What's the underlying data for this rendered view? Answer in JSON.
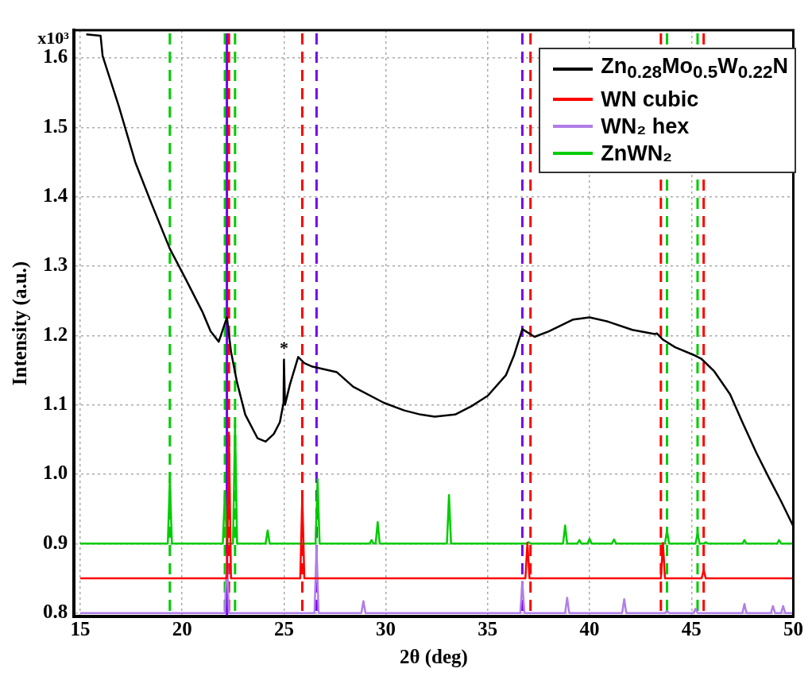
{
  "chart_data": {
    "type": "line",
    "xlabel": "2θ (deg)",
    "ylabel": "Intensity (a.u.)",
    "xlim": [
      14.7,
      50
    ],
    "ylim": [
      0.795,
      1.64
    ],
    "xticks": [
      15,
      20,
      25,
      30,
      35,
      40,
      45,
      50
    ],
    "yticks": [
      0.8,
      0.9,
      {
        "value": 1.0,
        "label": "1.0"
      },
      1.1,
      1.2,
      1.3,
      1.4,
      1.5,
      1.6
    ],
    "grid": true,
    "legend": "top right",
    "marker": "none",
    "line_style": "solid",
    "series": [
      {
        "name": "Zn$_{0.28}$Mo$_{0.5}$W$_{0.22}$N",
        "color": "#000000",
        "x": [
          15.3,
          16,
          16.1,
          16.9,
          17.7,
          18.5,
          19.4,
          20.2,
          21,
          21.4,
          21.8,
          22.2,
          22.4,
          22.7,
          23.1,
          23.7,
          24.1,
          24.5,
          24.8,
          24.98,
          25.0,
          25.05,
          25.3,
          25.7,
          26.0,
          26.4,
          27.6,
          28.4,
          29.9,
          30.9,
          31.7,
          32.4,
          33.4,
          34.2,
          35.0,
          35.9,
          36.3,
          36.7,
          37.3,
          38.0,
          39.2,
          40.0,
          40.9,
          42.1,
          43.2,
          43.3,
          43.6,
          44.2,
          45.1,
          45.5,
          46.1,
          46.9,
          47.5,
          48.2,
          48.8,
          49.4,
          50
        ],
        "values": [
          1.634,
          1.632,
          1.603,
          1.53,
          1.45,
          1.39,
          1.325,
          1.28,
          1.234,
          1.206,
          1.191,
          1.226,
          1.177,
          1.132,
          1.086,
          1.052,
          1.047,
          1.058,
          1.075,
          1.103,
          1.165,
          1.1,
          1.13,
          1.169,
          1.16,
          1.155,
          1.147,
          1.126,
          1.103,
          1.092,
          1.086,
          1.083,
          1.086,
          1.098,
          1.113,
          1.143,
          1.172,
          1.209,
          1.198,
          1.206,
          1.223,
          1.226,
          1.22,
          1.208,
          1.202,
          1.203,
          1.194,
          1.183,
          1.172,
          1.166,
          1.149,
          1.115,
          1.075,
          1.03,
          0.995,
          0.961,
          0.925
        ]
      },
      {
        "name": "WN cubic",
        "color": "#ff0000",
        "x": [
          15,
          22.2,
          22.3,
          22.4,
          25.8,
          25.9,
          26.0,
          36.85,
          36.95,
          37.05,
          43.5,
          43.6,
          43.7,
          45.5,
          45.6,
          45.7,
          50
        ],
        "values": [
          0.85,
          0.85,
          1.06,
          0.85,
          0.85,
          0.969,
          0.85,
          0.85,
          0.901,
          0.85,
          0.85,
          0.901,
          0.85,
          0.85,
          0.862,
          0.85,
          0.85
        ]
      },
      {
        "name": "WN₂ hex",
        "color": "#b07ee8",
        "x": [
          15,
          22.1,
          22.2,
          22.3,
          26.5,
          26.6,
          26.7,
          28.8,
          28.9,
          29.0,
          36.6,
          36.7,
          36.8,
          38.8,
          38.9,
          39.0,
          41.6,
          41.7,
          41.8,
          43.7,
          43.8,
          43.9,
          45.1,
          45.2,
          45.3,
          47.5,
          47.6,
          47.7,
          48.9,
          49.0,
          49.1,
          49.4,
          49.5,
          49.6,
          50
        ],
        "values": [
          0.8,
          0.8,
          0.885,
          0.8,
          0.8,
          0.897,
          0.8,
          0.8,
          0.817,
          0.8,
          0.8,
          0.845,
          0.8,
          0.8,
          0.822,
          0.8,
          0.8,
          0.82,
          0.8,
          0.8,
          0.803,
          0.8,
          0.8,
          0.806,
          0.8,
          0.8,
          0.813,
          0.8,
          0.8,
          0.81,
          0.8,
          0.8,
          0.81,
          0.8,
          0.8
        ]
      },
      {
        "name": "ZnWN₂",
        "color": "#00cc00",
        "x": [
          15,
          19.3,
          19.4,
          19.5,
          22.0,
          22.1,
          22.2,
          22.5,
          22.6,
          22.7,
          24.1,
          24.2,
          24.3,
          26.55,
          26.65,
          26.75,
          29.2,
          29.3,
          29.4,
          29.5,
          29.6,
          29.7,
          33.0,
          33.1,
          33.2,
          36.9,
          37.0,
          37.1,
          38.7,
          38.8,
          38.9,
          39.4,
          39.5,
          39.6,
          39.9,
          40.0,
          40.1,
          41.1,
          41.2,
          41.3,
          43.7,
          43.8,
          43.9,
          45.2,
          45.3,
          45.4,
          45.6,
          45.7,
          45.8,
          47.5,
          47.6,
          47.7,
          49.2,
          49.3,
          49.4,
          50
        ],
        "values": [
          0.9,
          0.9,
          0.993,
          0.9,
          0.9,
          0.973,
          0.9,
          0.9,
          1.072,
          0.9,
          0.9,
          0.919,
          0.9,
          0.9,
          0.993,
          0.9,
          0.9,
          0.905,
          0.9,
          0.9,
          0.931,
          0.9,
          0.9,
          0.97,
          0.9,
          0.9,
          0.902,
          0.9,
          0.9,
          0.926,
          0.9,
          0.9,
          0.905,
          0.9,
          0.9,
          0.907,
          0.9,
          0.9,
          0.906,
          0.9,
          0.9,
          0.919,
          0.9,
          0.9,
          0.915,
          0.9,
          0.9,
          0.902,
          0.9,
          0.9,
          0.905,
          0.9,
          0.9,
          0.905,
          0.9,
          0.9
        ]
      }
    ],
    "ref_lines": [
      {
        "axis": "x",
        "value": 19.4,
        "color": "#00cc00",
        "line_style": "dashed"
      },
      {
        "axis": "x",
        "value": 22.1,
        "color": "#00cc00",
        "line_style": "dashed"
      },
      {
        "axis": "x",
        "value": 22.6,
        "color": "#00cc00",
        "line_style": "dashed"
      },
      {
        "axis": "x",
        "value": 22.3,
        "color": "#ff0000",
        "line_style": "dashed"
      },
      {
        "axis": "x",
        "value": 22.2,
        "color": "#7700ee",
        "line_style": "solid"
      },
      {
        "axis": "x",
        "value": 25.9,
        "color": "#ff0000",
        "line_style": "dashed"
      },
      {
        "axis": "x",
        "value": 26.6,
        "color": "#7700ee",
        "line_style": "dashed"
      },
      {
        "axis": "x",
        "value": 36.7,
        "color": "#7700ee",
        "line_style": "dashed"
      },
      {
        "axis": "x",
        "value": 37.1,
        "color": "#ff0000",
        "line_style": "dashed"
      },
      {
        "axis": "x",
        "value": 43.5,
        "color": "#ff0000",
        "line_style": "dashed"
      },
      {
        "axis": "x",
        "value": 43.8,
        "color": "#00cc00",
        "line_style": "dashed"
      },
      {
        "axis": "x",
        "value": 45.3,
        "color": "#00cc00",
        "line_style": "dashed"
      },
      {
        "axis": "x",
        "value": 45.6,
        "color": "#ff0000",
        "line_style": "dashed"
      }
    ],
    "annotations": [
      {
        "text": "*",
        "x": 25.0,
        "y": 1.165
      },
      "x10³"
    ]
  }
}
